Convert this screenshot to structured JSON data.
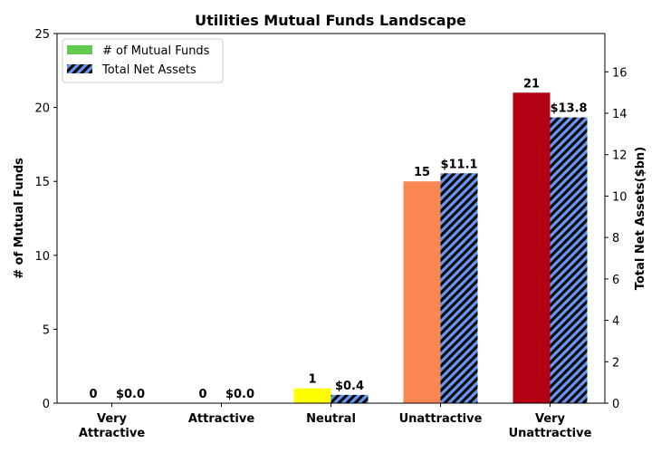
{
  "chart_data": {
    "type": "bar",
    "title": "Utilities Mutual Funds Landscape",
    "categories": [
      [
        "Very",
        "Attractive"
      ],
      [
        "Attractive"
      ],
      [
        "Neutral"
      ],
      [
        "Unattractive"
      ],
      [
        "Very",
        "Unattractive"
      ]
    ],
    "series": [
      {
        "name": "# of Mutual Funds",
        "axis": "left",
        "values": [
          0,
          0,
          1,
          15,
          21
        ],
        "labels": [
          "0",
          "0",
          "1",
          "15",
          "21"
        ],
        "colors": [
          "#63c94f",
          "#63c94f",
          "#ffff00",
          "#f98653",
          "#b30012"
        ],
        "legend_color": "#63c94f"
      },
      {
        "name": "Total Net Assets",
        "axis": "right",
        "values": [
          0.0,
          0.0,
          0.4,
          11.1,
          13.8
        ],
        "labels": [
          "$0.0",
          "$0.0",
          "$0.4",
          "$11.1",
          "$13.8"
        ],
        "color": "#6495ed",
        "hatch": "//"
      }
    ],
    "ylabel": "# of Mutual Funds",
    "ylim": [
      0,
      25
    ],
    "yticks": [
      0,
      5,
      10,
      15,
      20,
      25
    ],
    "y2label": "Total Net Assets($bn)",
    "y2lim": [
      0,
      17.85
    ],
    "y2ticks": [
      0,
      2,
      4,
      6,
      8,
      10,
      12,
      14,
      16
    ],
    "legend_position": "upper-left",
    "grid": false
  }
}
